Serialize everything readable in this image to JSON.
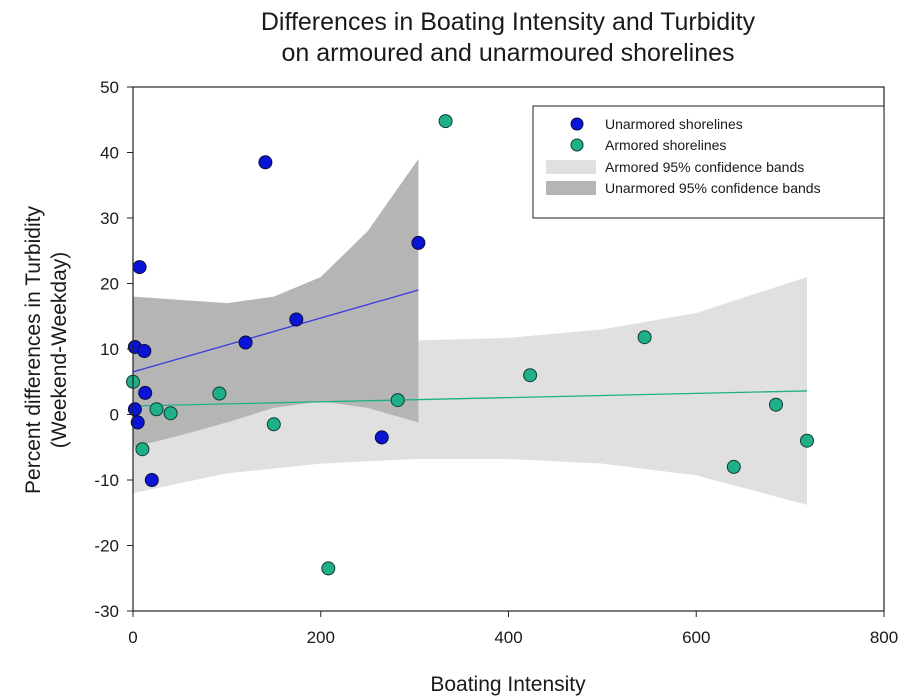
{
  "chart_data": {
    "type": "scatter",
    "title": [
      "Differences in Boating Intensity and Turbidity",
      "on armoured and unarmoured shorelines"
    ],
    "xlabel": "Boating Intensity",
    "ylabel": [
      "Percent differences in Turbidity",
      "(Weekend-Weekday)"
    ],
    "xlim": [
      0,
      800
    ],
    "ylim": [
      -30,
      50
    ],
    "x_ticks": [
      "0",
      "200",
      "400",
      "600",
      "800"
    ],
    "y_ticks": [
      "-30",
      "-20",
      "-10",
      "0",
      "10",
      "20",
      "30",
      "40",
      "50"
    ],
    "grid": false,
    "legend_position": "top-right",
    "series": [
      {
        "name": "Unarmored shorelines",
        "color": "#0a14d6",
        "points": [
          [
            2,
            10.3
          ],
          [
            2,
            0.8
          ],
          [
            5,
            -1.2
          ],
          [
            7,
            22.5
          ],
          [
            12,
            9.7
          ],
          [
            13,
            3.3
          ],
          [
            20,
            -10
          ],
          [
            120,
            11
          ],
          [
            141,
            38.5
          ],
          [
            174,
            14.5
          ],
          [
            265,
            -3.5
          ],
          [
            304,
            26.2
          ]
        ]
      },
      {
        "name": "Armored shorelines",
        "color": "#1fb08a",
        "points": [
          [
            0,
            5.0
          ],
          [
            10,
            -5.3
          ],
          [
            25,
            0.8
          ],
          [
            40,
            0.2
          ],
          [
            92,
            3.2
          ],
          [
            150,
            -1.5
          ],
          [
            208,
            -23.5
          ],
          [
            282,
            2.2
          ],
          [
            333,
            44.8
          ],
          [
            423,
            6.0
          ],
          [
            545,
            11.8
          ],
          [
            640,
            -8.0
          ],
          [
            685,
            1.5
          ],
          [
            718,
            -4.0
          ]
        ]
      }
    ],
    "fit_lines": [
      {
        "series": "Unarmored shorelines",
        "color": "#3a3adf",
        "from": [
          0,
          6.5
        ],
        "to": [
          304,
          19.0
        ]
      },
      {
        "series": "Armored shorelines",
        "color": "#1fb08a",
        "from": [
          0,
          1.3
        ],
        "to": [
          718,
          3.6
        ]
      }
    ],
    "confidence_bands": [
      {
        "name": "Armored 95% confidence bands",
        "color": "#e0e0e0",
        "upper": [
          [
            0,
            14.5
          ],
          [
            100,
            12.5
          ],
          [
            200,
            11.5
          ],
          [
            300,
            11.3
          ],
          [
            400,
            11.7
          ],
          [
            500,
            13.0
          ],
          [
            600,
            15.5
          ],
          [
            718,
            21.0
          ]
        ],
        "lower": [
          [
            0,
            -12.0
          ],
          [
            100,
            -9.0
          ],
          [
            200,
            -7.5
          ],
          [
            300,
            -6.8
          ],
          [
            400,
            -6.8
          ],
          [
            500,
            -7.5
          ],
          [
            600,
            -9.3
          ],
          [
            718,
            -13.8
          ]
        ]
      },
      {
        "name": "Unarmored 95% confidence bands",
        "color": "#b5b5b5",
        "upper": [
          [
            0,
            18.0
          ],
          [
            50,
            17.5
          ],
          [
            100,
            17.0
          ],
          [
            150,
            18.0
          ],
          [
            200,
            21.0
          ],
          [
            250,
            28.0
          ],
          [
            304,
            39.0
          ]
        ],
        "lower": [
          [
            0,
            -5.0
          ],
          [
            50,
            -3.2
          ],
          [
            100,
            -1.2
          ],
          [
            150,
            1.0
          ],
          [
            200,
            2.0
          ],
          [
            250,
            1.0
          ],
          [
            304,
            -1.2
          ]
        ]
      }
    ]
  }
}
